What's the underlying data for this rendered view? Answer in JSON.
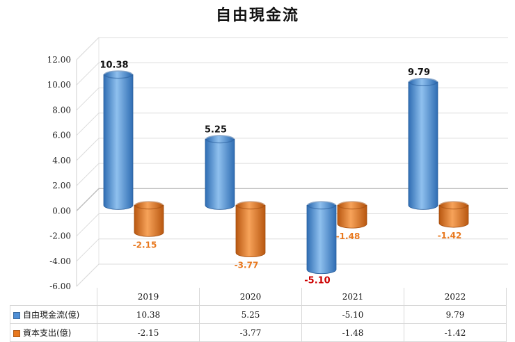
{
  "chart_data": {
    "type": "bar",
    "title": "自由現金流",
    "categories": [
      "2019",
      "2020",
      "2021",
      "2022"
    ],
    "series": [
      {
        "name": "自由現金流(億)",
        "values": [
          10.38,
          5.25,
          -5.1,
          9.79
        ],
        "color": "#4f8fd6",
        "labels": [
          "10.38",
          "5.25",
          "-5.10",
          "9.79"
        ]
      },
      {
        "name": "資本支出(億)",
        "values": [
          -2.15,
          -3.77,
          -1.48,
          -1.42
        ],
        "color": "#e8781e",
        "labels": [
          "-2.15",
          "-3.77",
          "-1.48",
          "-1.42"
        ]
      }
    ],
    "ylim": [
      -6,
      12
    ],
    "yticks": [
      "12.00",
      "10.00",
      "8.00",
      "6.00",
      "4.00",
      "2.00",
      "0.00",
      "-2.00",
      "-4.00",
      "-6.00"
    ],
    "data_label_colors": {
      "positive": "#111111",
      "negative_series1": "#cc0000",
      "series2": "#e8781e"
    },
    "grid": true,
    "legend": "data-table"
  }
}
